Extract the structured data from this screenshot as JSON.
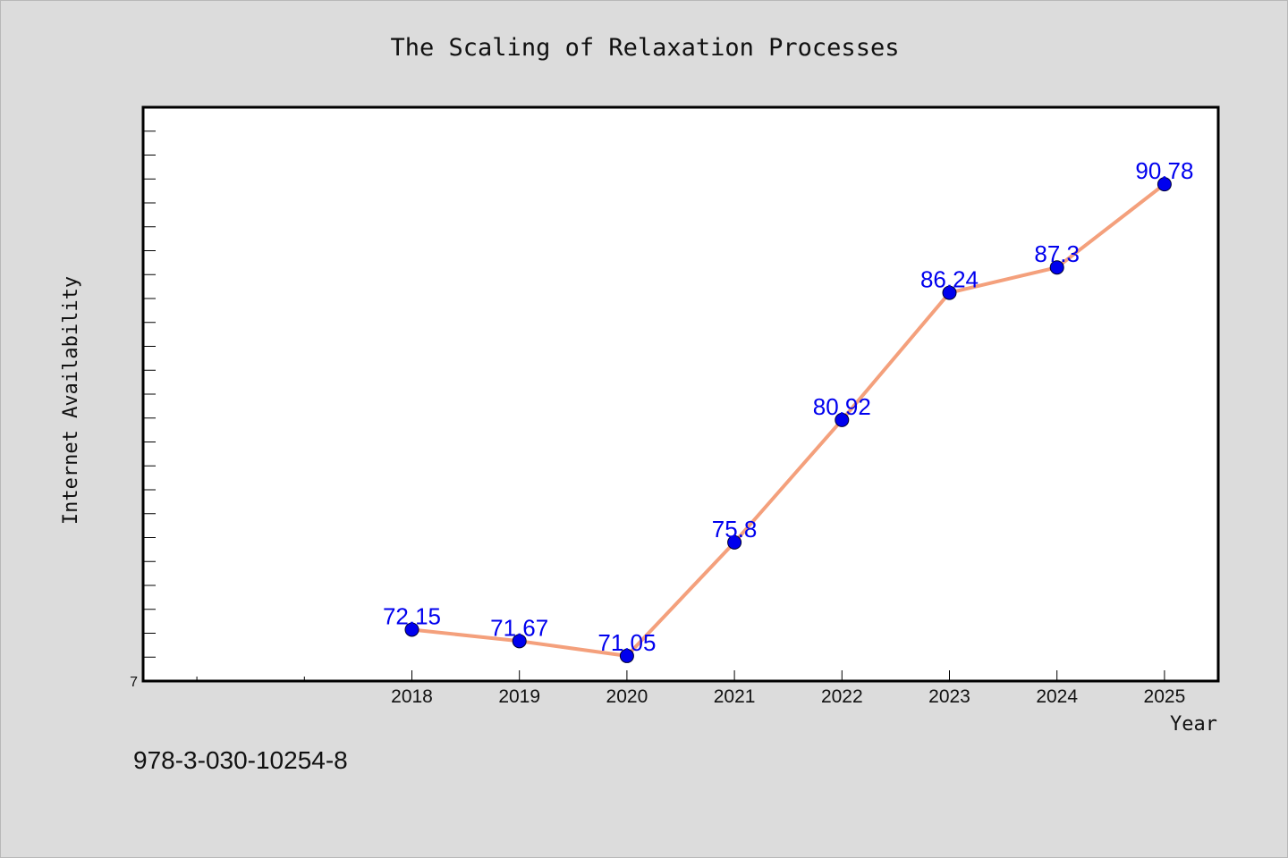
{
  "footer": {
    "code": "978-3-030-10254-8"
  },
  "chart_data": {
    "type": "line",
    "title": "The Scaling of Relaxation Processes",
    "xlabel": "Year",
    "ylabel": "Internet Availability",
    "categories": [
      "2018",
      "2019",
      "2020",
      "2021",
      "2022",
      "2023",
      "2024",
      "2025"
    ],
    "x": [
      2018,
      2019,
      2020,
      2021,
      2022,
      2023,
      2024,
      2025
    ],
    "values": [
      72.15,
      71.67,
      71.05,
      75.8,
      80.92,
      86.24,
      87.3,
      90.78
    ],
    "data_labels": [
      "72.15",
      "71.67",
      "71.05",
      "75.8",
      "80.92",
      "86.24",
      "87.3",
      "90.78"
    ],
    "xlim": [
      2015.5,
      2025.5
    ],
    "ylim": [
      70,
      94
    ],
    "y_tick_labels": [
      "7"
    ],
    "y_tick_step": 1,
    "grid": false,
    "legend": "none",
    "colors": {
      "line": "#f4a07c",
      "marker": "#0000ee",
      "label": "#0000ee",
      "plot_background": "#ffffff",
      "page_background": "#dcdcdc",
      "frame": "#000000"
    }
  }
}
